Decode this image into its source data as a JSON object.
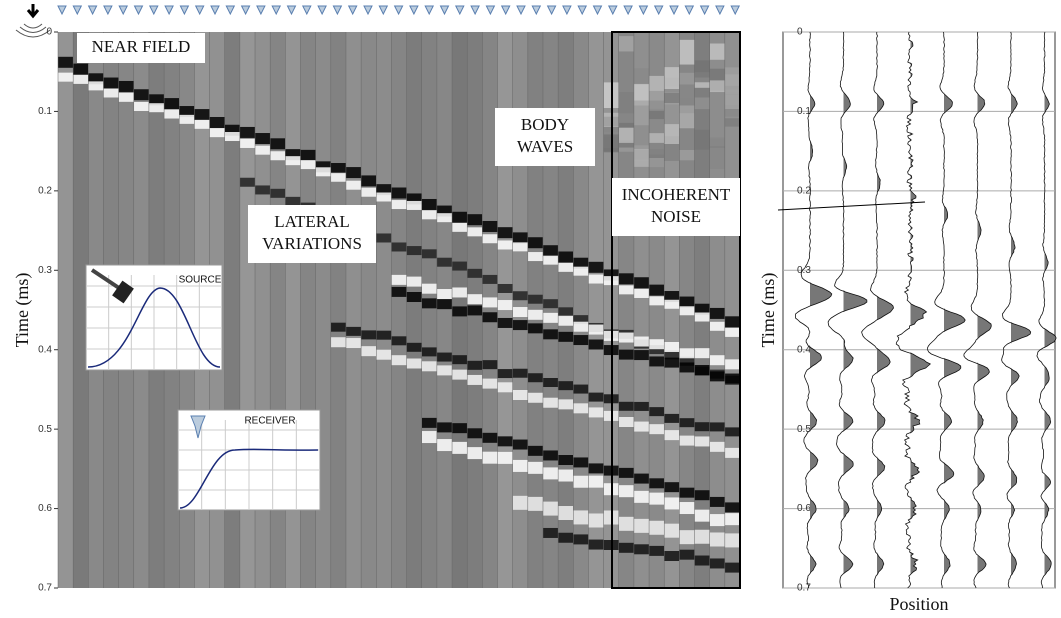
{
  "chart_data": [
    {
      "type": "seismic-image",
      "ylabel": "Time (ms)",
      "ylim": [
        0,
        0.7
      ],
      "yticks": [
        0,
        0.1,
        0.2,
        0.3,
        0.4,
        0.5,
        0.6,
        0.7
      ],
      "annotations": [
        {
          "lines": [
            "NEAR FIELD"
          ]
        },
        {
          "lines": [
            "BODY",
            "WAVES"
          ]
        },
        {
          "lines": [
            "LATERAL",
            "VARIATIONS"
          ]
        },
        {
          "lines": [
            "INCOHERENT",
            "NOISE"
          ]
        },
        {
          "lines": [
            "SOURCE"
          ]
        },
        {
          "lines": [
            "RECEIVER"
          ]
        }
      ]
    },
    {
      "type": "wiggle",
      "ylabel": "Time (ms)",
      "xlabel": "Position",
      "ylim": [
        0,
        0.7
      ],
      "yticks": [
        0,
        0.1,
        0.2,
        0.3,
        0.4,
        0.5,
        0.6,
        0.7
      ],
      "grid": true
    }
  ]
}
